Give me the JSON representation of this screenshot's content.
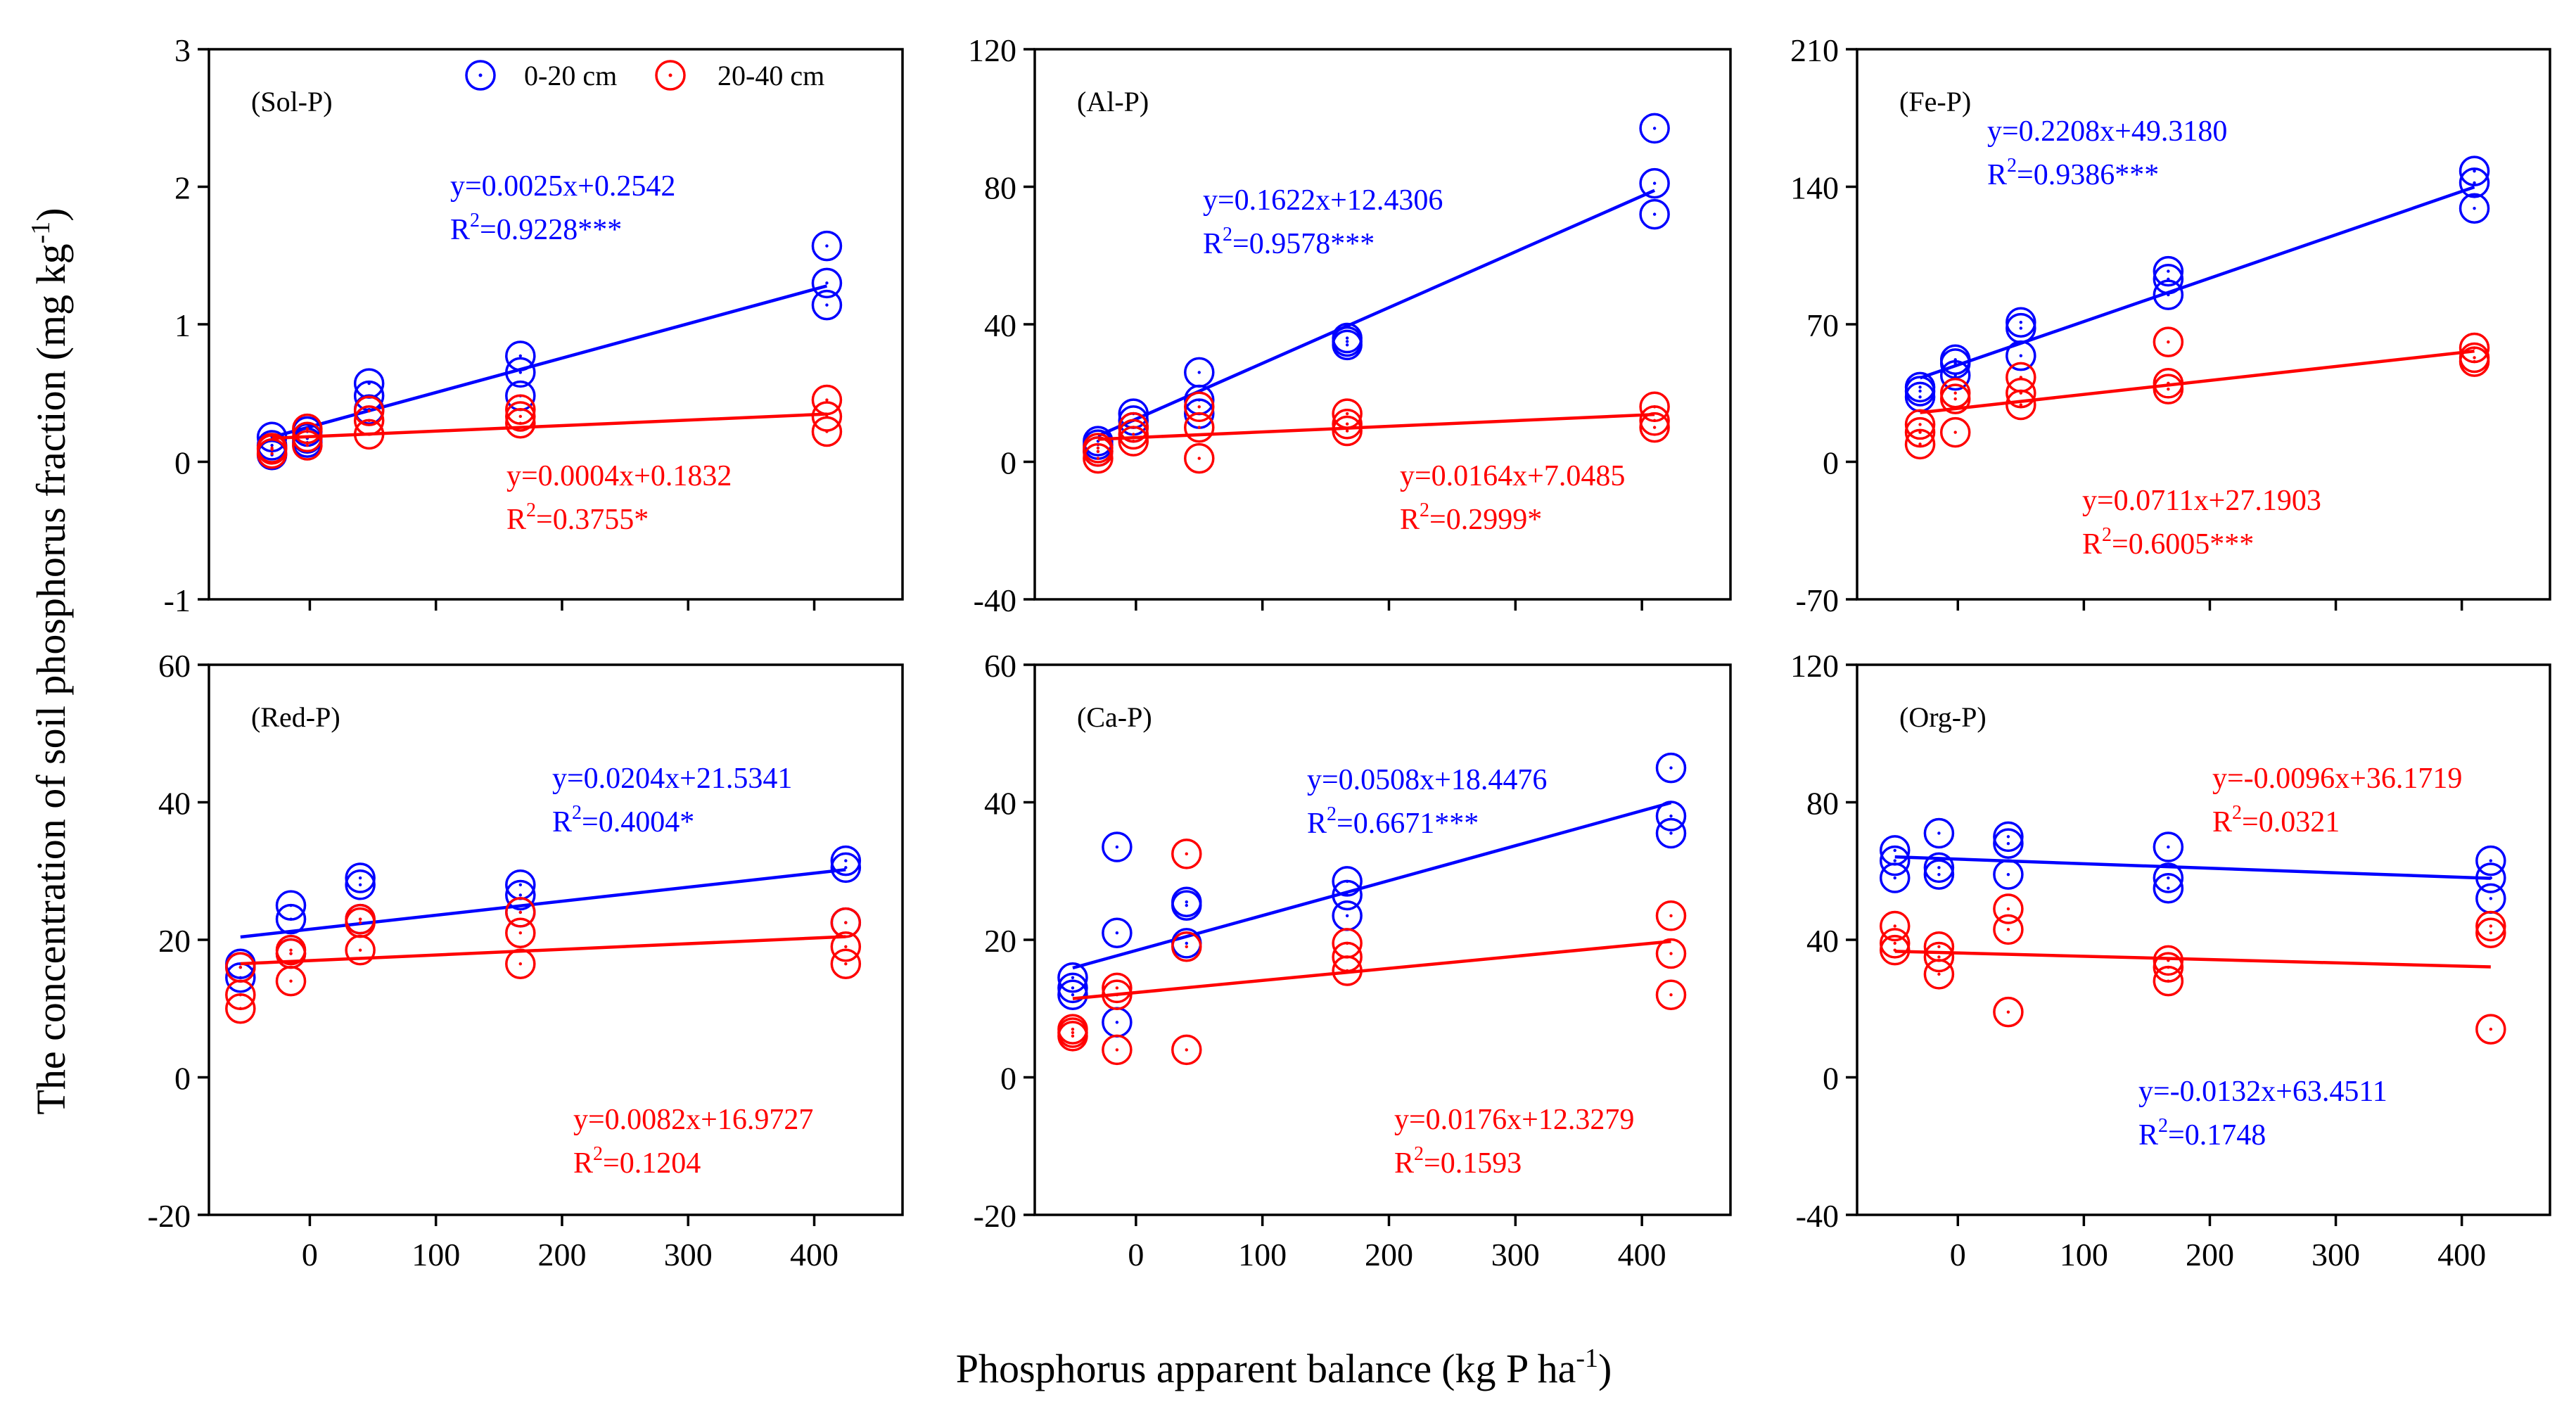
{
  "figure": {
    "ylabel_main": "The concentration of soil phosphorus fraction",
    "ylabel_unit": "(mg kg",
    "ylabel_sup": "-1",
    "ylabel_close": ")",
    "xlabel_main": "Phosphorus apparent balance",
    "xlabel_unit": "(kg P ha",
    "xlabel_sup": "-1",
    "xlabel_close": ")",
    "legend": {
      "series1": "0-20 cm",
      "series2": "20-40 cm"
    },
    "colors": {
      "series1": "#0000ff",
      "series2": "#ff0000",
      "axis": "#000000"
    }
  },
  "chart_data": [
    {
      "type": "scatter",
      "title": "(Sol-P)",
      "xlim": [
        -80,
        470
      ],
      "ylim": [
        -1,
        3
      ],
      "xticks": [
        0,
        100,
        200,
        300,
        400
      ],
      "xtick_labels": [
        "0",
        "100",
        "200",
        "300",
        "400"
      ],
      "yticks": [
        -1,
        0,
        1,
        2,
        3
      ],
      "ytick_labels": [
        "-1",
        "0",
        "1",
        "2",
        "3"
      ],
      "show_xtick_labels": false,
      "series": [
        {
          "name": "0-20 cm",
          "x": [
            -30,
            -30,
            -30,
            -2,
            -2,
            -2,
            47,
            47,
            47,
            167,
            167,
            167,
            410,
            410,
            410
          ],
          "y": [
            0.05,
            0.12,
            0.18,
            0.14,
            0.17,
            0.22,
            0.38,
            0.48,
            0.57,
            0.48,
            0.65,
            0.77,
            1.14,
            1.3,
            1.57
          ],
          "fit_x": [
            -30,
            410
          ],
          "fit_slope": 0.0025,
          "fit_intercept": 0.2542,
          "equation": "y=0.0025x+0.2542",
          "r2_prefix": "R",
          "r2_sup": "2",
          "r2_value": "=0.9228***"
        },
        {
          "name": "20-40 cm",
          "x": [
            -30,
            -30,
            -30,
            -2,
            -2,
            -2,
            47,
            47,
            47,
            167,
            167,
            167,
            410,
            410,
            410
          ],
          "y": [
            0.06,
            0.09,
            0.1,
            0.12,
            0.18,
            0.24,
            0.2,
            0.3,
            0.37,
            0.28,
            0.33,
            0.38,
            0.22,
            0.33,
            0.45
          ],
          "fit_x": [
            -30,
            410
          ],
          "fit_slope": 0.0004,
          "fit_intercept": 0.1832,
          "equation": "y=0.0004x+0.1832",
          "r2_prefix": "R",
          "r2_sup": "2",
          "r2_value": "=0.3755*"
        }
      ]
    },
    {
      "type": "scatter",
      "title": "(Al-P)",
      "xlim": [
        -80,
        470
      ],
      "ylim": [
        -40,
        120
      ],
      "xticks": [
        0,
        100,
        200,
        300,
        400
      ],
      "xtick_labels": [
        "0",
        "100",
        "200",
        "300",
        "400"
      ],
      "yticks": [
        -40,
        0,
        40,
        80,
        120
      ],
      "ytick_labels": [
        "-40",
        "0",
        "40",
        "80",
        "120"
      ],
      "show_xtick_labels": false,
      "series": [
        {
          "name": "0-20 cm",
          "x": [
            -30,
            -30,
            -30,
            -2,
            -2,
            -2,
            50,
            50,
            50,
            167,
            167,
            167,
            410,
            410,
            410
          ],
          "y": [
            3,
            5,
            6,
            10,
            12,
            14,
            14,
            18,
            26,
            34,
            35,
            36,
            72,
            81,
            97
          ],
          "fit_x": [
            -30,
            410
          ],
          "fit_slope": 0.1622,
          "fit_intercept": 12.4306,
          "equation": "y=0.1622x+12.4306",
          "r2_prefix": "R",
          "r2_sup": "2",
          "r2_value": "=0.9578***"
        },
        {
          "name": "20-40 cm",
          "x": [
            -30,
            -30,
            -30,
            -2,
            -2,
            -2,
            50,
            50,
            50,
            167,
            167,
            167,
            410,
            410,
            410
          ],
          "y": [
            1,
            3,
            4,
            6,
            8,
            10,
            1,
            10,
            16,
            9,
            11,
            14,
            10,
            12,
            16
          ],
          "fit_x": [
            -30,
            410
          ],
          "fit_slope": 0.0164,
          "fit_intercept": 7.0485,
          "equation": "y=0.0164x+7.0485",
          "r2_prefix": "R",
          "r2_sup": "2",
          "r2_value": "=0.2999*"
        }
      ]
    },
    {
      "type": "scatter",
      "title": "(Fe-P)",
      "xlim": [
        -80,
        470
      ],
      "ylim": [
        -70,
        210
      ],
      "xticks": [
        0,
        100,
        200,
        300,
        400
      ],
      "xtick_labels": [
        "0",
        "100",
        "200",
        "300",
        "400"
      ],
      "yticks": [
        -70,
        0,
        70,
        140,
        210
      ],
      "ytick_labels": [
        "-70",
        "0",
        "70",
        "140",
        "210"
      ],
      "show_xtick_labels": false,
      "series": [
        {
          "name": "0-20 cm",
          "x": [
            -30,
            -30,
            -30,
            -2,
            -2,
            -2,
            50,
            50,
            50,
            167,
            167,
            167,
            410,
            410,
            410
          ],
          "y": [
            33,
            36,
            38,
            44,
            50,
            52,
            54,
            68,
            71,
            85,
            93,
            97,
            129,
            142,
            148
          ],
          "fit_x": [
            -30,
            410
          ],
          "fit_slope": 0.2208,
          "fit_intercept": 49.318,
          "equation": "y=0.2208x+49.3180",
          "r2_prefix": "R",
          "r2_sup": "2",
          "r2_value": "=0.9386***"
        },
        {
          "name": "20-40 cm",
          "x": [
            -30,
            -30,
            -30,
            -2,
            -2,
            -2,
            50,
            50,
            50,
            167,
            167,
            167,
            410,
            410,
            410
          ],
          "y": [
            9,
            15,
            19,
            15,
            32,
            35,
            29,
            35,
            43,
            37,
            40,
            61,
            51,
            53,
            58
          ],
          "fit_x": [
            -30,
            410
          ],
          "fit_slope": 0.0711,
          "fit_intercept": 27.1903,
          "equation": "y=0.0711x+27.1903",
          "r2_prefix": "R",
          "r2_sup": "2",
          "r2_value": "=0.6005***"
        }
      ]
    },
    {
      "type": "scatter",
      "title": "(Red-P)",
      "xlim": [
        -80,
        470
      ],
      "ylim": [
        -20,
        60
      ],
      "xticks": [
        0,
        100,
        200,
        300,
        400
      ],
      "xtick_labels": [
        "0",
        "100",
        "200",
        "300",
        "400"
      ],
      "yticks": [
        -20,
        0,
        20,
        40,
        60
      ],
      "ytick_labels": [
        "-20",
        "0",
        "20",
        "40",
        "60"
      ],
      "show_xtick_labels": true,
      "series": [
        {
          "name": "0-20 cm",
          "x": [
            -55,
            -55,
            -55,
            -15,
            -15,
            -15,
            40,
            40,
            40,
            167,
            167,
            167,
            425,
            425,
            425
          ],
          "y": [
            14.5,
            16,
            16.5,
            18,
            23,
            25,
            23,
            28,
            29,
            24,
            26.5,
            28,
            22.5,
            30.5,
            31.5
          ],
          "fit_x": [
            -55,
            425
          ],
          "fit_slope": 0.0204,
          "fit_intercept": 21.5341,
          "equation": "y=0.0204x+21.5341",
          "r2_prefix": "R",
          "r2_sup": "2",
          "r2_value": "=0.4004*"
        },
        {
          "name": "20-40 cm",
          "x": [
            -55,
            -55,
            -55,
            -15,
            -15,
            -15,
            40,
            40,
            40,
            167,
            167,
            167,
            425,
            425,
            425
          ],
          "y": [
            10,
            12,
            16,
            14,
            18,
            18.5,
            18.5,
            22.5,
            23,
            16.5,
            21,
            24,
            16.5,
            19,
            22.5
          ],
          "fit_x": [
            -55,
            425
          ],
          "fit_slope": 0.0082,
          "fit_intercept": 16.9727,
          "equation": "y=0.0082x+16.9727",
          "r2_prefix": "R",
          "r2_sup": "2",
          "r2_value": "=0.1204"
        }
      ]
    },
    {
      "type": "scatter",
      "title": "(Ca-P)",
      "xlim": [
        -80,
        470
      ],
      "ylim": [
        -20,
        60
      ],
      "xticks": [
        0,
        100,
        200,
        300,
        400
      ],
      "xtick_labels": [
        "0",
        "100",
        "200",
        "300",
        "400"
      ],
      "yticks": [
        -20,
        0,
        20,
        40,
        60
      ],
      "ytick_labels": [
        "-20",
        "0",
        "20",
        "40",
        "60"
      ],
      "show_xtick_labels": true,
      "series": [
        {
          "name": "0-20 cm",
          "x": [
            -50,
            -50,
            -50,
            -15,
            -15,
            -15,
            40,
            40,
            40,
            167,
            167,
            167,
            423,
            423,
            423
          ],
          "y": [
            12,
            13,
            14.5,
            8,
            21,
            33.5,
            19.5,
            25,
            25.5,
            23.5,
            26.5,
            28.5,
            35.5,
            38,
            45
          ],
          "fit_x": [
            -50,
            423
          ],
          "fit_slope": 0.0508,
          "fit_intercept": 18.4476,
          "equation": "y=0.0508x+18.4476",
          "r2_prefix": "R",
          "r2_sup": "2",
          "r2_value": "=0.6671***"
        },
        {
          "name": "20-40 cm",
          "x": [
            -50,
            -50,
            -50,
            -15,
            -15,
            -15,
            40,
            40,
            40,
            167,
            167,
            167,
            423,
            423,
            423
          ],
          "y": [
            6,
            6.5,
            7,
            4,
            12,
            13,
            4,
            19,
            32.5,
            15.5,
            17.5,
            19.5,
            12,
            18,
            23.5
          ],
          "fit_x": [
            -50,
            423
          ],
          "fit_slope": 0.0176,
          "fit_intercept": 12.3279,
          "equation": "y=0.0176x+12.3279",
          "r2_prefix": "R",
          "r2_sup": "2",
          "r2_value": "=0.1593"
        }
      ]
    },
    {
      "type": "scatter",
      "title": "(Org-P)",
      "xlim": [
        -80,
        470
      ],
      "ylim": [
        -40,
        120
      ],
      "xticks": [
        0,
        100,
        200,
        300,
        400
      ],
      "xtick_labels": [
        "0",
        "100",
        "200",
        "300",
        "400"
      ],
      "yticks": [
        -40,
        0,
        40,
        80,
        120
      ],
      "ytick_labels": [
        "-40",
        "0",
        "40",
        "80",
        "120"
      ],
      "show_xtick_labels": true,
      "series": [
        {
          "name": "0-20 cm",
          "x": [
            -50,
            -50,
            -50,
            -15,
            -15,
            -15,
            40,
            40,
            40,
            167,
            167,
            167,
            423,
            423,
            423
          ],
          "y": [
            58,
            63,
            66,
            59,
            61,
            71,
            59,
            68,
            70,
            55,
            58,
            67,
            52,
            58,
            63
          ],
          "fit_x": [
            -50,
            423
          ],
          "fit_slope": -0.0132,
          "fit_intercept": 63.4511,
          "equation": "y=-0.0132x+63.4511",
          "r2_prefix": "R",
          "r2_sup": "2",
          "r2_value": "=0.1748"
        },
        {
          "name": "20-40 cm",
          "x": [
            -50,
            -50,
            -50,
            -15,
            -15,
            -15,
            40,
            40,
            40,
            167,
            167,
            167,
            423,
            423,
            423
          ],
          "y": [
            37,
            39,
            44,
            30,
            35,
            38,
            19,
            43,
            49,
            28,
            32,
            34,
            14,
            42,
            44
          ],
          "fit_x": [
            -50,
            423
          ],
          "fit_slope": -0.0096,
          "fit_intercept": 36.1719,
          "equation": "y=-0.0096x+36.1719",
          "r2_prefix": "R",
          "r2_sup": "2",
          "r2_value": "=0.0321"
        }
      ]
    }
  ]
}
